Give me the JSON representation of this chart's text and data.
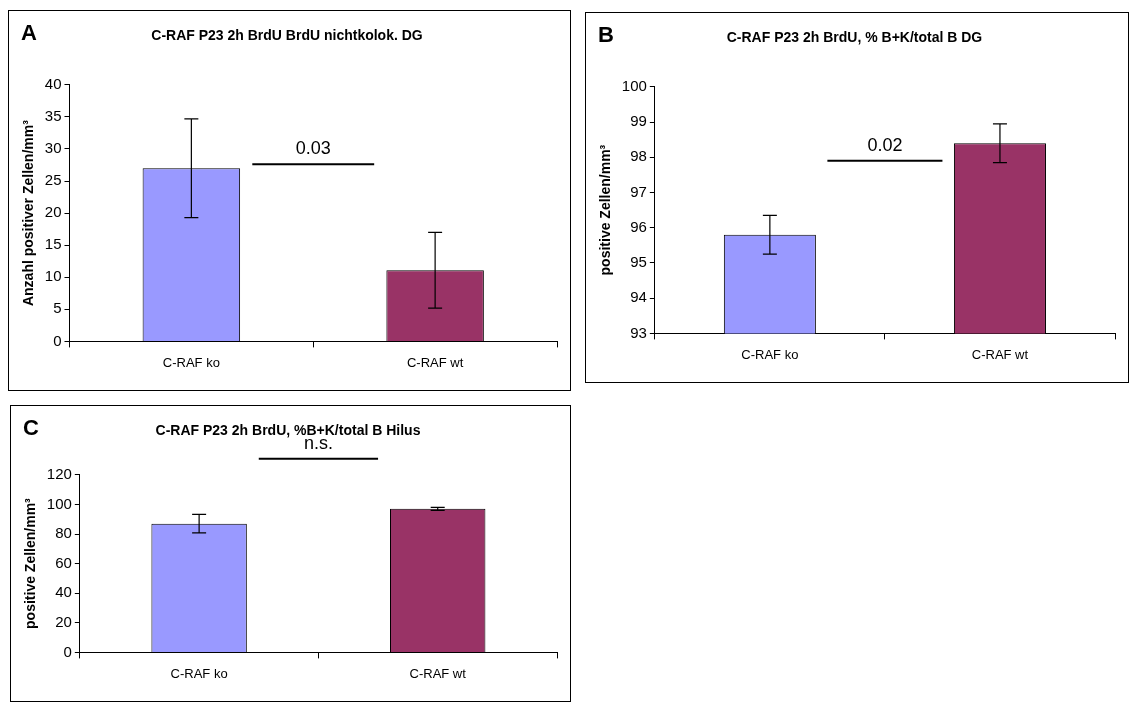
{
  "chart_data": [
    {
      "type": "bar",
      "title": "C-RAF P23 2h BrdU BrdU nichtkolok. DG",
      "ylabel": "Anzahl positiver Zellen/mm³",
      "categories": [
        "C-RAF ko",
        "C-RAF wt"
      ],
      "values": [
        27,
        11.1
      ],
      "colors": [
        "#9999ff",
        "#993366"
      ],
      "errors": [
        7.7,
        5.9
      ],
      "ylim": [
        0,
        40
      ],
      "yticks": [
        0,
        5,
        10,
        15,
        20,
        25,
        30,
        35,
        40
      ],
      "annotations": [
        "A",
        "0.03"
      ]
    },
    {
      "type": "bar",
      "title": "C-RAF P23 2h BrdU, % B+K/total B DG",
      "ylabel": "positive Zellen/mm³",
      "categories": [
        "C-RAF ko",
        "C-RAF wt"
      ],
      "values": [
        95.8,
        98.4
      ],
      "colors": [
        "#9999ff",
        "#993366"
      ],
      "errors": [
        0.55,
        0.55
      ],
      "ylim": [
        93,
        100
      ],
      "yticks": [
        93,
        94,
        95,
        96,
        97,
        98,
        99,
        100
      ],
      "annotations": [
        "B",
        "0.02"
      ]
    },
    {
      "type": "bar",
      "title": "C-RAF P23 2h BrdU, %B+K/total B Hilus",
      "ylabel": "positive Zellen/mm³",
      "categories": [
        "C-RAF ko",
        "C-RAF wt"
      ],
      "values": [
        87,
        97
      ],
      "colors": [
        "#9999ff",
        "#993366"
      ],
      "errors": [
        6.3,
        1
      ],
      "ylim": [
        0,
        120
      ],
      "yticks": [
        0,
        20,
        40,
        60,
        80,
        100,
        120
      ],
      "annotations": [
        "C",
        "n.s."
      ]
    }
  ]
}
